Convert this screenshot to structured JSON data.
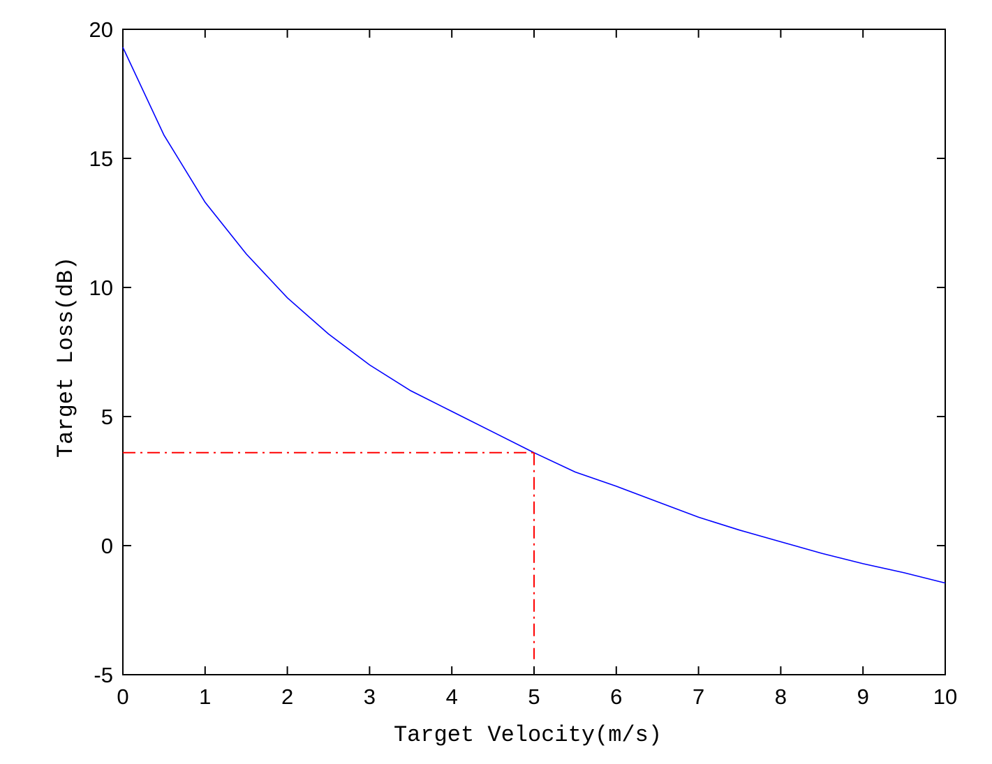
{
  "chart_data": {
    "type": "line",
    "title": "",
    "xlabel": "Target Velocity(m/s)",
    "ylabel": "Target Loss(dB)",
    "xlim": [
      0,
      10
    ],
    "ylim": [
      -5,
      20
    ],
    "x_ticks": [
      "0",
      "1",
      "2",
      "3",
      "4",
      "5",
      "6",
      "7",
      "8",
      "9",
      "10"
    ],
    "y_ticks": [
      "-5",
      "0",
      "5",
      "10",
      "15",
      "20"
    ],
    "grid": false,
    "series": [
      {
        "color": "#0000ff",
        "style": "solid",
        "x": [
          0,
          0.5,
          1,
          1.5,
          2,
          2.5,
          3,
          3.5,
          4,
          4.5,
          5,
          5.5,
          6,
          6.5,
          7,
          7.5,
          8,
          8.5,
          9,
          9.5,
          10
        ],
        "y": [
          19.3,
          15.9,
          13.3,
          11.3,
          9.6,
          8.2,
          7.0,
          6.0,
          5.2,
          4.4,
          3.6,
          2.85,
          2.3,
          1.7,
          1.1,
          0.6,
          0.15,
          -0.3,
          -0.7,
          -1.05,
          -1.45
        ]
      }
    ],
    "reference_lines": [
      {
        "color": "#ff0000",
        "style": "dash-dot",
        "x": [
          0,
          5
        ],
        "y": [
          3.6,
          3.6
        ]
      },
      {
        "color": "#ff0000",
        "style": "dash-dot",
        "x": [
          5,
          5
        ],
        "y": [
          3.6,
          -4.4
        ]
      }
    ]
  }
}
